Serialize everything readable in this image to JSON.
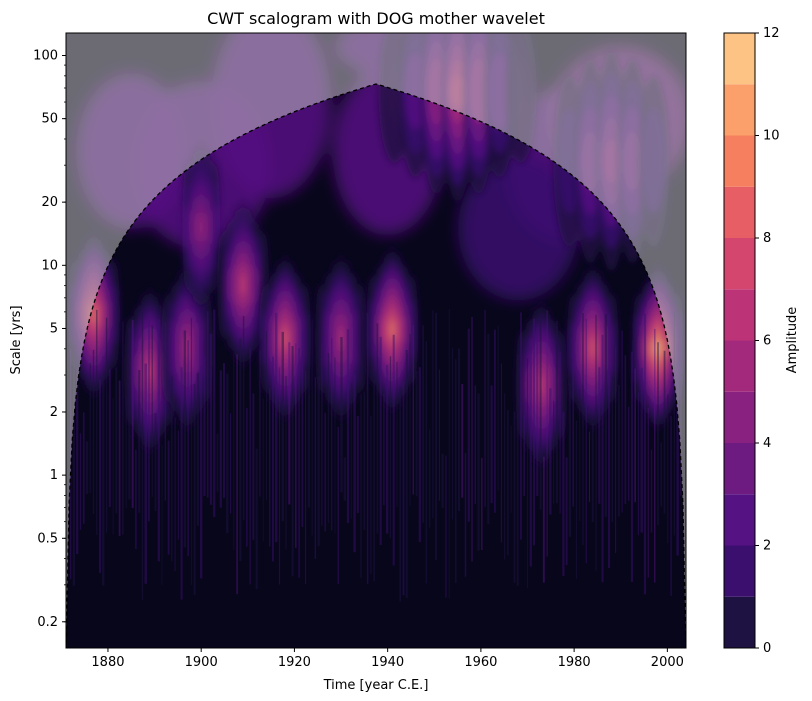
{
  "chart_data": {
    "type": "heatmap",
    "title": "CWT scalogram with DOG mother wavelet",
    "xlabel": "Time [year C.E.]",
    "ylabel": "Scale [yrs]",
    "xlim": [
      1871,
      2004
    ],
    "ylim": [
      0.15,
      128
    ],
    "yscale": "log",
    "x_ticks": [
      1880,
      1900,
      1920,
      1940,
      1960,
      1980,
      2000
    ],
    "y_ticks": [
      0.2,
      0.5,
      1,
      2,
      5,
      10,
      20,
      50,
      100
    ],
    "colorbar": {
      "label": "Amplitude",
      "levels": [
        0,
        1,
        2,
        3,
        4,
        5,
        6,
        7,
        8,
        9,
        10,
        11,
        12
      ],
      "ticks": [
        0,
        2,
        4,
        6,
        8,
        10,
        12
      ],
      "colors": [
        "#07061a",
        "#1e1242",
        "#3a0f6e",
        "#551283",
        "#6e1b81",
        "#88217f",
        "#a3297c",
        "#bc3477",
        "#d5466e",
        "#e75f64",
        "#f57f5e",
        "#fba06b",
        "#fdc384",
        "#fde6a4"
      ],
      "colormap": "magma"
    },
    "cone_of_influence": "dashed black curve; shaded grey outside",
    "bursts": [
      {
        "year": 1877,
        "scale": 6.5,
        "amplitude": 10
      },
      {
        "year": 1889,
        "scale": 3.5,
        "amplitude": 8
      },
      {
        "year": 1897,
        "scale": 4.5,
        "amplitude": 7
      },
      {
        "year": 1900,
        "scale": 17,
        "amplitude": 6
      },
      {
        "year": 1909,
        "scale": 9,
        "amplitude": 8
      },
      {
        "year": 1918,
        "scale": 5,
        "amplitude": 9
      },
      {
        "year": 1930,
        "scale": 5,
        "amplitude": 7
      },
      {
        "year": 1941,
        "scale": 5.5,
        "amplitude": 10
      },
      {
        "year": 1955,
        "scale": 75,
        "amplitude": 7
      },
      {
        "year": 1973,
        "scale": 3,
        "amplitude": 8
      },
      {
        "year": 1984,
        "scale": 4.5,
        "amplitude": 9
      },
      {
        "year": 1988,
        "scale": 35,
        "amplitude": 5
      },
      {
        "year": 1998,
        "scale": 4.5,
        "amplitude": 12
      }
    ]
  }
}
